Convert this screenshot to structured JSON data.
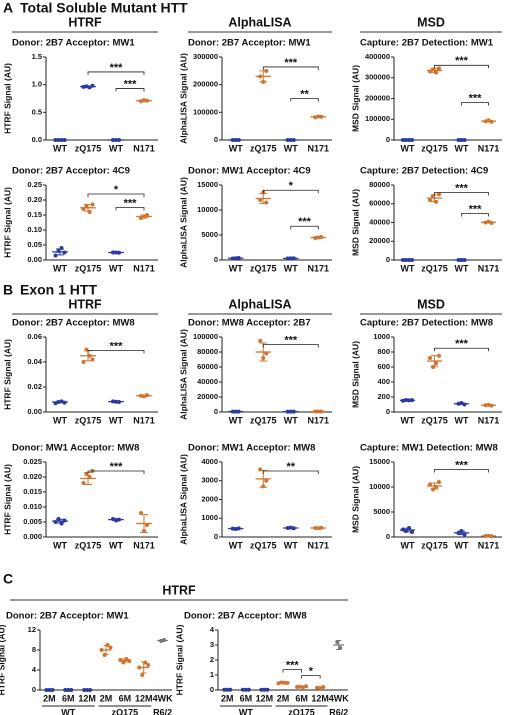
{
  "figure": {
    "sections": [
      {
        "letter": "A",
        "title": "Total Soluble Mutant HTT",
        "headers": [
          "HTRF",
          "AlphaLISA",
          "MSD"
        ]
      },
      {
        "letter": "B",
        "title": "Exon 1 HTT",
        "headers": [
          "HTRF",
          "AlphaLISA",
          "MSD"
        ]
      },
      {
        "letter": "C",
        "headers": [
          "HTRF"
        ]
      }
    ]
  },
  "chart_data": [
    {
      "type": "strip",
      "title": "Donor: 2B7 Acceptor: MW1",
      "y_label": "HTRF Signal (AU)",
      "categories": [
        "WT",
        "zQ175",
        "WT",
        "N171"
      ],
      "groups": [
        {
          "color": "#2b3a9e",
          "points": [
            0,
            0,
            0,
            0
          ],
          "mean": 0,
          "sd": 0
        },
        {
          "color": "#2b3a9e",
          "points": [
            0.96,
            0.97,
            0.95,
            0.98
          ],
          "mean": 0.965,
          "sd": 0.01
        },
        {
          "color": "#2b3a9e",
          "points": [
            0,
            0,
            0
          ],
          "mean": 0,
          "sd": 0
        },
        {
          "color": "#d2732e",
          "points": [
            0.7,
            0.72,
            0.71
          ],
          "mean": 0.71,
          "sd": 0.01
        }
      ],
      "ylim": [
        0,
        1.5
      ],
      "yticks": [
        {
          "value": 0,
          "label": "0.0"
        },
        0.5,
        {
          "value": 1,
          "label": "1.0"
        },
        1.5
      ],
      "annotations": [
        {
          "text": "***"
        },
        {
          "text": "***"
        }
      ]
    },
    {
      "type": "strip",
      "title": "Donor: 2B7 Acceptor: MW1",
      "y_label": "AlphaLISA Signal (AU)",
      "categories": [
        "WT",
        "zQ175",
        "WT",
        "N171"
      ],
      "groups": [
        {
          "color": "#2b3a9e",
          "points": [
            0,
            0,
            0
          ],
          "mean": 0,
          "sd": 0
        },
        {
          "color": "#d2732e",
          "points": [
            230000,
            210000,
            250000
          ],
          "mean": 230000,
          "sd": 20000
        },
        {
          "color": "#2b3a9e",
          "points": [
            0,
            0,
            0
          ],
          "mean": 0,
          "sd": 0
        },
        {
          "color": "#d2732e",
          "points": [
            82000,
            85000,
            84000
          ],
          "mean": 84000,
          "sd": 1500
        }
      ],
      "ylim": [
        0,
        300000
      ],
      "yticks": [
        0,
        100000,
        200000,
        300000
      ],
      "annotations": [
        {
          "text": "***"
        },
        {
          "text": "**"
        }
      ]
    },
    {
      "type": "strip",
      "title": "Capture: 2B7 Detection: MW1",
      "y_label": "MSD Signal (AU)",
      "categories": [
        "WT",
        "zQ175",
        "WT",
        "N171"
      ],
      "groups": [
        {
          "color": "#2b3a9e",
          "points": [
            0,
            0,
            0,
            0
          ],
          "mean": 0,
          "sd": 0
        },
        {
          "color": "#d2732e",
          "points": [
            330000,
            340000,
            325000,
            345000
          ],
          "mean": 335000,
          "sd": 9000
        },
        {
          "color": "#2b3a9e",
          "points": [
            0,
            0,
            0
          ],
          "mean": 0,
          "sd": 0
        },
        {
          "color": "#d2732e",
          "points": [
            90000,
            95000,
            88000
          ],
          "mean": 91000,
          "sd": 3500
        }
      ],
      "ylim": [
        0,
        400000
      ],
      "yticks": [
        0,
        100000,
        200000,
        300000,
        400000
      ],
      "annotations": [
        {
          "text": "***"
        },
        {
          "text": "***"
        }
      ]
    },
    {
      "type": "strip",
      "title": "Donor: 2B7 Acceptor: 4C9",
      "y_label": "HTRF Signal (AU)",
      "categories": [
        "WT",
        "zQ175",
        "WT",
        "N171"
      ],
      "groups": [
        {
          "color": "#2b3a9e",
          "points": [
            0.015,
            0.03,
            0.04,
            0.025
          ],
          "mean": 0.027,
          "sd": 0.01
        },
        {
          "color": "#d2732e",
          "points": [
            0.17,
            0.18,
            0.16,
            0.185
          ],
          "mean": 0.174,
          "sd": 0.011
        },
        {
          "color": "#2b3a9e",
          "points": [
            0.025,
            0.025,
            0.024
          ],
          "mean": 0.025,
          "sd": 0.001
        },
        {
          "color": "#d2732e",
          "points": [
            0.14,
            0.145,
            0.15
          ],
          "mean": 0.145,
          "sd": 0.005
        }
      ],
      "ylim": [
        0,
        0.25
      ],
      "yticks": [
        {
          "value": 0,
          "label": "0.00"
        },
        0.05,
        {
          "value": 0.1,
          "label": "0.10"
        },
        0.15,
        {
          "value": 0.2,
          "label": "0.20"
        },
        0.25
      ],
      "annotations": [
        {
          "text": "*"
        },
        {
          "text": "***"
        }
      ]
    },
    {
      "type": "strip",
      "title": "Donor: MW1 Acceptor: 4C9",
      "y_label": "AlphaLISA Signal (AU)",
      "categories": [
        "WT",
        "zQ175",
        "WT",
        "N171"
      ],
      "groups": [
        {
          "color": "#2b3a9e",
          "points": [
            300,
            350,
            400
          ],
          "mean": 350,
          "sd": 50
        },
        {
          "color": "#d2732e",
          "points": [
            12000,
            13500,
            11500
          ],
          "mean": 12300,
          "sd": 1000
        },
        {
          "color": "#2b3a9e",
          "points": [
            300,
            320,
            340
          ],
          "mean": 320,
          "sd": 20
        },
        {
          "color": "#d2732e",
          "points": [
            4400,
            4500,
            4600
          ],
          "mean": 4500,
          "sd": 100
        }
      ],
      "ylim": [
        0,
        15000
      ],
      "yticks": [
        0,
        5000,
        10000,
        15000
      ],
      "annotations": [
        {
          "text": "*"
        },
        {
          "text": "***"
        }
      ]
    },
    {
      "type": "strip",
      "title": "Capture: 2B7 Detection: 4C9",
      "y_label": "MSD Signal (AU)",
      "categories": [
        "WT",
        "zQ175",
        "WT",
        "N171"
      ],
      "groups": [
        {
          "color": "#2b3a9e",
          "points": [
            0,
            0,
            0,
            0
          ],
          "mean": 0,
          "sd": 0
        },
        {
          "color": "#d2732e",
          "points": [
            64000,
            68000,
            62000,
            70000
          ],
          "mean": 66000,
          "sd": 3500
        },
        {
          "color": "#2b3a9e",
          "points": [
            0,
            0,
            0
          ],
          "mean": 0,
          "sd": 0
        },
        {
          "color": "#d2732e",
          "points": [
            40000,
            41000,
            39500
          ],
          "mean": 40200,
          "sd": 700
        }
      ],
      "ylim": [
        0,
        80000
      ],
      "yticks": [
        0,
        20000,
        40000,
        60000,
        80000
      ],
      "annotations": [
        {
          "text": "***"
        },
        {
          "text": "***"
        }
      ]
    },
    {
      "type": "strip",
      "title": "Donor: 2B7 Acceptor: MW8",
      "y_label": "HTRF Signal (AU)",
      "categories": [
        "WT",
        "zQ175",
        "WT",
        "N171"
      ],
      "groups": [
        {
          "color": "#2b3a9e",
          "points": [
            0.007,
            0.008,
            0.0085,
            0.0075
          ],
          "mean": 0.008,
          "sd": 0.0006
        },
        {
          "color": "#d2732e",
          "points": [
            0.04,
            0.05,
            0.045,
            0.042
          ],
          "mean": 0.045,
          "sd": 0.004
        },
        {
          "color": "#2b3a9e",
          "points": [
            0.0085,
            0.0082,
            0.008
          ],
          "mean": 0.0083,
          "sd": 0.0003
        },
        {
          "color": "#d2732e",
          "points": [
            0.013,
            0.0125,
            0.0135
          ],
          "mean": 0.013,
          "sd": 0.0005
        }
      ],
      "ylim": [
        0,
        0.06
      ],
      "yticks": [
        {
          "value": 0,
          "label": "0.00"
        },
        0.02,
        0.04,
        0.06
      ],
      "annotations": [
        {
          "text": "***"
        }
      ]
    },
    {
      "type": "strip",
      "title": "Donor: MW8 Acceptor: 2B7",
      "y_label": "AlphaLISA Signal (AU)",
      "categories": [
        "WT",
        "zQ175",
        "WT",
        "N171"
      ],
      "groups": [
        {
          "color": "#2b3a9e",
          "points": [
            500,
            450,
            550
          ],
          "mean": 500,
          "sd": 50
        },
        {
          "color": "#d2732e",
          "points": [
            95000,
            72000,
            78000
          ],
          "mean": 80000,
          "sd": 12000
        },
        {
          "color": "#2b3a9e",
          "points": [
            500,
            520,
            480
          ],
          "mean": 500,
          "sd": 20
        },
        {
          "color": "#d2732e",
          "points": [
            700,
            650,
            750
          ],
          "mean": 700,
          "sd": 50
        }
      ],
      "ylim": [
        0,
        100000
      ],
      "yticks": [
        0,
        20000,
        40000,
        60000,
        80000,
        100000
      ],
      "annotations": [
        {
          "text": "***"
        }
      ]
    },
    {
      "type": "strip",
      "title": "Capture: 2B7 Detection: MW8",
      "y_label": "MSD Signal (AU)",
      "categories": [
        "WT",
        "zQ175",
        "WT",
        "N171"
      ],
      "groups": [
        {
          "color": "#2b3a9e",
          "points": [
            150,
            160,
            155,
            158
          ],
          "mean": 155,
          "sd": 5
        },
        {
          "color": "#d2732e",
          "points": [
            720,
            600,
            650,
            750
          ],
          "mean": 680,
          "sd": 70
        },
        {
          "color": "#2b3a9e",
          "points": [
            110,
            120,
            100
          ],
          "mean": 110,
          "sd": 10
        },
        {
          "color": "#d2732e",
          "points": [
            90,
            95,
            85
          ],
          "mean": 90,
          "sd": 5
        }
      ],
      "ylim": [
        0,
        1000
      ],
      "yticks": [
        0,
        200,
        400,
        600,
        800,
        1000
      ],
      "annotations": [
        {
          "text": "***"
        }
      ]
    },
    {
      "type": "strip",
      "title": "Donor: MW1 Acceptor: MW8",
      "y_label": "HTRF Signal (AU)",
      "categories": [
        "WT",
        "zQ175",
        "WT",
        "N171"
      ],
      "groups": [
        {
          "color": "#2b3a9e",
          "points": [
            0.005,
            0.006,
            0.0045,
            0.0055
          ],
          "mean": 0.0053,
          "sd": 0.0006
        },
        {
          "color": "#d2732e",
          "points": [
            0.018,
            0.021,
            0.02,
            0.022
          ],
          "mean": 0.0195,
          "sd": 0.002
        },
        {
          "color": "#2b3a9e",
          "points": [
            0.006,
            0.0055,
            0.0058
          ],
          "mean": 0.0058,
          "sd": 0.0003
        },
        {
          "color": "#d2732e",
          "points": [
            0.008,
            0.002,
            0.004
          ],
          "mean": 0.0045,
          "sd": 0.003
        }
      ],
      "ylim": [
        0,
        0.025
      ],
      "yticks": [
        {
          "value": 0,
          "label": "0.000"
        },
        0.005,
        {
          "value": 0.01,
          "label": "0.010"
        },
        0.015,
        {
          "value": 0.02,
          "label": "0.020"
        },
        0.025
      ],
      "annotations": [
        {
          "text": "***"
        }
      ]
    },
    {
      "type": "strip",
      "title": "Donor: MW1 Acceptor: MW8",
      "y_label": "AlphaLISA Signal (AU)",
      "categories": [
        "WT",
        "zQ175",
        "WT",
        "N171"
      ],
      "groups": [
        {
          "color": "#2b3a9e",
          "points": [
            450,
            430,
            460
          ],
          "mean": 450,
          "sd": 15
        },
        {
          "color": "#d2732e",
          "points": [
            3600,
            2700,
            3000
          ],
          "mean": 3100,
          "sd": 450
        },
        {
          "color": "#2b3a9e",
          "points": [
            480,
            500,
            470
          ],
          "mean": 480,
          "sd": 15
        },
        {
          "color": "#d2732e",
          "points": [
            480,
            470,
            490
          ],
          "mean": 480,
          "sd": 10
        }
      ],
      "ylim": [
        0,
        4000
      ],
      "yticks": [
        0,
        1000,
        2000,
        3000,
        4000
      ],
      "annotations": [
        {
          "text": "**"
        }
      ]
    },
    {
      "type": "strip",
      "title": "Capture: MW1 Detection: MW8",
      "y_label": "MSD Signal (AU)",
      "categories": [
        "WT",
        "zQ175",
        "WT",
        "N171"
      ],
      "groups": [
        {
          "color": "#2b3a9e",
          "points": [
            1500,
            1200,
            1800,
            1000
          ],
          "mean": 1400,
          "sd": 350
        },
        {
          "color": "#d2732e",
          "points": [
            10500,
            9500,
            10000,
            11000
          ],
          "mean": 10200,
          "sd": 600
        },
        {
          "color": "#2b3a9e",
          "points": [
            800,
            1200,
            500
          ],
          "mean": 830,
          "sd": 350
        },
        {
          "color": "#d2732e",
          "points": [
            200,
            250,
            150
          ],
          "mean": 200,
          "sd": 50
        }
      ],
      "ylim": [
        0,
        15000
      ],
      "yticks": [
        0,
        5000,
        10000,
        15000
      ],
      "annotations": [
        {
          "text": "***"
        }
      ]
    },
    {
      "type": "strip",
      "title": "Donor: 2B7 Acceptor: MW1",
      "y_label": "HTRF Signal (AU)",
      "categories": [
        "2M",
        "6M",
        "12M",
        "2M",
        "6M",
        "12M",
        "4WK"
      ],
      "x_groups": [
        "WT",
        "zQ175",
        "R6/2"
      ],
      "groups": [
        {
          "color": "#2b3a9e",
          "points": [
            0,
            0,
            0
          ],
          "mean": 0,
          "sd": 0
        },
        {
          "color": "#2b3a9e",
          "points": [
            0,
            0,
            0
          ],
          "mean": 0,
          "sd": 0
        },
        {
          "color": "#2b3a9e",
          "points": [
            0,
            0,
            0
          ],
          "mean": 0,
          "sd": 0
        },
        {
          "color": "#d2732e",
          "points": [
            8,
            7,
            9,
            8.5
          ],
          "mean": 8,
          "sd": 0.9
        },
        {
          "color": "#d2732e",
          "points": [
            6,
            5.5,
            6.2,
            5.8
          ],
          "mean": 5.9,
          "sd": 0.3
        },
        {
          "color": "#d2732e",
          "points": [
            4.5,
            3,
            5.5,
            5
          ],
          "mean": 4.5,
          "sd": 1.1
        },
        {
          "color": "#777777",
          "points": [
            9.8,
            10
          ],
          "mean": 9.9,
          "sd": 0.2
        }
      ],
      "ylim": [
        0,
        12
      ],
      "yticks": [
        0,
        4,
        8,
        12
      ],
      "annotations": []
    },
    {
      "type": "strip",
      "title": "Donor: 2B7 Acceptor: MW8",
      "y_label": "HTRF Signal (AU)",
      "categories": [
        "2M",
        "6M",
        "12M",
        "2M",
        "6M",
        "12M",
        "4WK"
      ],
      "x_groups": [
        "WT",
        "zQ175",
        "R6/2"
      ],
      "groups": [
        {
          "color": "#2b3a9e",
          "points": [
            0.02,
            0.02,
            0.02
          ],
          "mean": 0.02,
          "sd": 0.005
        },
        {
          "color": "#2b3a9e",
          "points": [
            0.02,
            0.02,
            0.02
          ],
          "mean": 0.02,
          "sd": 0.005
        },
        {
          "color": "#2b3a9e",
          "points": [
            0.02,
            0.02,
            0.02
          ],
          "mean": 0.02,
          "sd": 0.005
        },
        {
          "color": "#d2732e",
          "points": [
            0.45,
            0.5,
            0.48,
            0.47
          ],
          "mean": 0.47,
          "sd": 0.02
        },
        {
          "color": "#d2732e",
          "points": [
            0.2,
            0.22,
            0.18,
            0.25
          ],
          "mean": 0.21,
          "sd": 0.03
        },
        {
          "color": "#d2732e",
          "points": [
            0.15,
            0.12,
            0.2
          ],
          "mean": 0.16,
          "sd": 0.04
        },
        {
          "color": "#777777",
          "points": [
            3.2,
            2.8
          ],
          "mean": 3,
          "sd": 0.3
        }
      ],
      "ylim": [
        0,
        4
      ],
      "yticks": [
        0,
        1,
        2,
        3,
        4
      ],
      "annotations": [
        {
          "text": "***"
        },
        {
          "text": "*"
        }
      ]
    }
  ]
}
